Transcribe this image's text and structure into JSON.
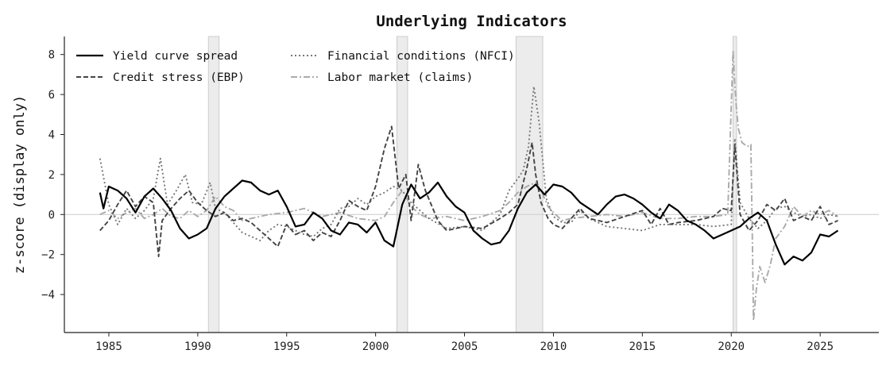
{
  "chart_data": {
    "type": "line",
    "title": "Underlying Indicators",
    "xlabel": "",
    "ylabel": "z-score (display only)",
    "xlim": [
      1982.5,
      2028.3
    ],
    "ylim": [
      -5.9,
      8.9
    ],
    "xticks": [
      1985,
      1990,
      1995,
      2000,
      2005,
      2010,
      2015,
      2020,
      2025
    ],
    "yticks": [
      -4,
      -2,
      0,
      2,
      4,
      6,
      8
    ],
    "xtick_labels": [
      "1985",
      "1990",
      "1995",
      "2000",
      "2005",
      "2010",
      "2015",
      "2020",
      "2025"
    ],
    "ytick_labels": [
      "−4",
      "−2",
      "0",
      "2",
      "4",
      "6",
      "8"
    ],
    "legend_position": "top-left",
    "zero_line": true,
    "recessions": [
      {
        "start": 1990.6,
        "end": 1991.2
      },
      {
        "start": 2001.2,
        "end": 2001.8
      },
      {
        "start": 2007.9,
        "end": 2009.4
      },
      {
        "start": 2020.1,
        "end": 2020.3
      }
    ],
    "series": [
      {
        "name": "Yield curve spread",
        "color": "#000000",
        "style": "solid",
        "x": [
          1984.5,
          1984.7,
          1985.0,
          1985.5,
          1986.0,
          1986.5,
          1987.0,
          1987.5,
          1988.0,
          1988.5,
          1989.0,
          1989.5,
          1990.0,
          1990.5,
          1991.0,
          1991.5,
          1992.0,
          1992.5,
          1993.0,
          1993.5,
          1994.0,
          1994.5,
          1995.0,
          1995.5,
          1996.0,
          1996.5,
          1997.0,
          1997.5,
          1998.0,
          1998.5,
          1999.0,
          1999.5,
          2000.0,
          2000.5,
          2001.0,
          2001.5,
          2002.0,
          2002.5,
          2003.0,
          2003.5,
          2004.0,
          2004.5,
          2005.0,
          2005.5,
          2006.0,
          2006.5,
          2007.0,
          2007.5,
          2008.0,
          2008.5,
          2009.0,
          2009.5,
          2010.0,
          2010.5,
          2011.0,
          2011.5,
          2012.0,
          2012.5,
          2013.0,
          2013.5,
          2014.0,
          2014.5,
          2015.0,
          2015.5,
          2016.0,
          2016.5,
          2017.0,
          2017.5,
          2018.0,
          2018.5,
          2019.0,
          2019.5,
          2020.0,
          2020.5,
          2021.0,
          2021.5,
          2022.0,
          2022.5,
          2023.0,
          2023.5,
          2024.0,
          2024.5,
          2025.0,
          2025.5,
          2026.0
        ],
        "y": [
          1.1,
          0.3,
          1.4,
          1.2,
          0.8,
          0.1,
          0.9,
          1.3,
          0.8,
          0.2,
          -0.7,
          -1.2,
          -1.0,
          -0.7,
          0.3,
          0.9,
          1.3,
          1.7,
          1.6,
          1.2,
          1.0,
          1.2,
          0.4,
          -0.6,
          -0.5,
          0.1,
          -0.2,
          -0.8,
          -1.0,
          -0.4,
          -0.5,
          -0.9,
          -0.4,
          -1.3,
          -1.6,
          0.5,
          1.5,
          0.8,
          1.1,
          1.6,
          0.9,
          0.4,
          0.1,
          -0.8,
          -1.2,
          -1.5,
          -1.4,
          -0.8,
          0.3,
          1.1,
          1.5,
          1.0,
          1.5,
          1.4,
          1.1,
          0.6,
          0.3,
          0.0,
          0.5,
          0.9,
          1.0,
          0.8,
          0.5,
          0.1,
          -0.2,
          0.5,
          0.2,
          -0.3,
          -0.5,
          -0.8,
          -1.2,
          -1.0,
          -0.8,
          -0.6,
          -0.2,
          0.1,
          -0.3,
          -1.5,
          -2.5,
          -2.1,
          -2.3,
          -1.9,
          -1.0,
          -1.1,
          -0.8
        ]
      },
      {
        "name": "Credit stress (EBP)",
        "color": "#444444",
        "style": "dashed",
        "x": [
          1984.5,
          1985.0,
          1985.5,
          1986.0,
          1986.5,
          1987.0,
          1987.5,
          1987.8,
          1988.0,
          1988.5,
          1989.0,
          1989.5,
          1990.0,
          1990.5,
          1991.0,
          1991.5,
          1992.0,
          1992.5,
          1993.0,
          1993.5,
          1994.0,
          1994.5,
          1995.0,
          1995.5,
          1996.0,
          1996.5,
          1997.0,
          1997.5,
          1998.0,
          1998.5,
          1999.0,
          1999.5,
          2000.0,
          2000.5,
          2000.9,
          2001.3,
          2001.7,
          2002.0,
          2002.4,
          2002.8,
          2003.5,
          2004.0,
          2005.0,
          2006.0,
          2007.0,
          2007.5,
          2008.0,
          2008.5,
          2008.8,
          2009.0,
          2009.3,
          2009.7,
          2010.0,
          2010.5,
          2011.0,
          2011.5,
          2012.0,
          2013.0,
          2014.0,
          2015.0,
          2015.5,
          2016.0,
          2016.5,
          2017.0,
          2018.0,
          2019.0,
          2019.5,
          2020.0,
          2020.2,
          2020.5,
          2021.0,
          2021.5,
          2022.0,
          2022.5,
          2023.0,
          2023.5,
          2024.0,
          2024.5,
          2025.0,
          2025.5,
          2026.0
        ],
        "y": [
          -0.8,
          -0.3,
          0.5,
          1.2,
          0.4,
          0.9,
          0.6,
          -2.1,
          -0.3,
          0.3,
          0.8,
          1.2,
          0.6,
          0.2,
          -0.1,
          0.1,
          -0.3,
          -0.2,
          -0.4,
          -0.8,
          -1.2,
          -1.6,
          -0.5,
          -1.0,
          -0.8,
          -1.3,
          -0.9,
          -1.1,
          -0.3,
          0.7,
          0.4,
          0.2,
          1.4,
          3.3,
          4.4,
          1.3,
          2.0,
          -0.3,
          2.5,
          1.2,
          -0.3,
          -0.8,
          -0.6,
          -0.7,
          -0.2,
          0.1,
          0.5,
          2.3,
          3.6,
          2.0,
          0.6,
          -0.2,
          -0.5,
          -0.7,
          -0.2,
          0.3,
          -0.2,
          -0.4,
          -0.1,
          0.2,
          -0.5,
          0.3,
          -0.5,
          -0.4,
          -0.3,
          -0.1,
          0.3,
          0.2,
          3.5,
          0.0,
          -0.8,
          -0.3,
          0.5,
          0.2,
          0.8,
          -0.3,
          -0.1,
          -0.3,
          0.4,
          -0.5,
          -0.3
        ]
      },
      {
        "name": "Financial conditions (NFCI)",
        "color": "#777777",
        "style": "dotted",
        "x": [
          1984.5,
          1985.0,
          1985.5,
          1986.0,
          1986.5,
          1987.0,
          1987.5,
          1987.9,
          1988.3,
          1988.8,
          1989.3,
          1989.7,
          1990.2,
          1990.7,
          1991.0,
          1991.5,
          1992.0,
          1992.5,
          1993.0,
          1993.5,
          1994.0,
          1994.5,
          1995.0,
          1995.5,
          1996.0,
          1996.5,
          1997.0,
          1997.5,
          1998.0,
          1998.5,
          1999.0,
          1999.5,
          2000.0,
          2000.5,
          2001.0,
          2001.5,
          2002.0,
          2002.5,
          2003.0,
          2004.0,
          2005.0,
          2006.0,
          2007.0,
          2007.5,
          2008.0,
          2008.3,
          2008.6,
          2008.9,
          2009.2,
          2009.6,
          2010.0,
          2010.5,
          2011.0,
          2011.5,
          2012.0,
          2013.0,
          2014.0,
          2015.0,
          2016.0,
          2017.0,
          2018.0,
          2019.0,
          2020.0,
          2020.2,
          2020.5,
          2021.0,
          2021.5,
          2022.0,
          2022.5,
          2023.0,
          2023.5,
          2024.0,
          2024.5,
          2025.0,
          2025.5,
          2026.0
        ],
        "y": [
          2.8,
          0.5,
          -0.5,
          0.3,
          -0.2,
          0.2,
          0.8,
          2.8,
          0.5,
          1.2,
          2.0,
          0.6,
          0.5,
          1.6,
          0.3,
          0.1,
          -0.4,
          -0.9,
          -1.1,
          -1.3,
          -0.8,
          -0.5,
          -0.6,
          -0.8,
          -1.0,
          -1.1,
          -0.7,
          -0.5,
          0.3,
          0.4,
          0.8,
          0.5,
          0.9,
          1.1,
          1.4,
          1.2,
          0.6,
          0.2,
          -0.2,
          -0.7,
          -0.6,
          -0.8,
          0.0,
          1.2,
          1.8,
          2.2,
          3.4,
          6.4,
          4.6,
          0.8,
          -0.1,
          -0.4,
          -0.4,
          0.2,
          -0.2,
          -0.6,
          -0.7,
          -0.8,
          -0.5,
          -0.5,
          -0.5,
          -0.6,
          -0.5,
          3.8,
          0.6,
          -0.2,
          -0.7,
          -0.3,
          0.3,
          0.4,
          0.1,
          -0.1,
          0.0,
          -0.2,
          0.0,
          -0.1
        ]
      },
      {
        "name": "Labor market (claims)",
        "color": "#aaaaaa",
        "style": "dashdot",
        "x": [
          1984.5,
          1985.0,
          1985.5,
          1986.0,
          1986.5,
          1987.0,
          1987.5,
          1988.0,
          1988.5,
          1989.0,
          1989.5,
          1990.0,
          1990.5,
          1991.0,
          1991.5,
          1992.0,
          1992.5,
          1993.0,
          1994.0,
          1995.0,
          1996.0,
          1997.0,
          1998.0,
          1999.0,
          2000.0,
          2000.5,
          2001.0,
          2001.5,
          2002.0,
          2002.5,
          2003.0,
          2004.0,
          2005.0,
          2006.0,
          2007.0,
          2007.5,
          2008.0,
          2008.5,
          2009.0,
          2009.3,
          2009.7,
          2010.0,
          2010.5,
          2011.0,
          2012.0,
          2013.0,
          2014.0,
          2015.0,
          2016.0,
          2017.0,
          2018.0,
          2019.0,
          2019.8,
          2020.1,
          2020.2,
          2020.3,
          2020.4,
          2020.6,
          2020.9,
          2021.1,
          2021.2,
          2021.25,
          2021.4,
          2021.6,
          2021.9,
          2022.2,
          2022.5,
          2023.0,
          2023.5,
          2024.0,
          2024.5,
          2025.0,
          2025.5,
          2026.0
        ],
        "y": [
          0.0,
          0.2,
          -0.2,
          0.1,
          0.3,
          -0.2,
          0.0,
          0.3,
          -0.1,
          -0.2,
          0.2,
          -0.1,
          0.2,
          0.9,
          0.4,
          0.2,
          -0.3,
          -0.2,
          0.0,
          0.1,
          0.3,
          -0.1,
          0.1,
          -0.2,
          -0.3,
          -0.1,
          0.6,
          1.2,
          0.4,
          0.0,
          -0.2,
          -0.1,
          -0.3,
          -0.1,
          0.2,
          0.6,
          1.1,
          1.4,
          1.6,
          1.2,
          0.4,
          0.1,
          -0.3,
          -0.2,
          -0.1,
          0.0,
          -0.1,
          0.1,
          -0.2,
          -0.2,
          -0.1,
          -0.1,
          0.0,
          8.2,
          6.5,
          5.2,
          4.3,
          3.6,
          3.4,
          3.5,
          -2.0,
          -5.3,
          -3.8,
          -2.6,
          -3.4,
          -2.5,
          -1.2,
          -0.6,
          0.4,
          -0.1,
          0.2,
          0.0,
          0.2,
          -0.1
        ]
      }
    ]
  }
}
